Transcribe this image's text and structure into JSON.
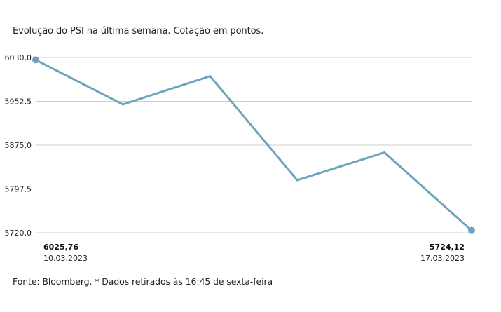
{
  "subtitle": "Evolução do PSI na última semana. Cotação em pontos.",
  "footer": "Fonte: Bloomberg.  * Dados retirados às 16:45 de sexta-feira",
  "colors": {
    "line": "#6fa3ba",
    "grid": "#cccccc"
  },
  "chart_data": {
    "type": "line",
    "title": "",
    "xlabel": "",
    "ylabel": "",
    "ylim": [
      5720.0,
      6030.0
    ],
    "yticks": [
      "6030,0",
      "5952,5",
      "5875,0",
      "5797,5",
      "5720,0"
    ],
    "ytick_values": [
      6030.0,
      5952.5,
      5875.0,
      5797.5,
      5720.0
    ],
    "grid": true,
    "legend": "none",
    "series": [
      {
        "values": [
          6025.76,
          5947,
          5997,
          5813,
          5862,
          5724.12
        ]
      }
    ],
    "start": {
      "value_label": "6025,76",
      "date_label": "10.03.2023"
    },
    "end": {
      "value_label": "5724,12",
      "date_label": "17.03.2023"
    }
  }
}
